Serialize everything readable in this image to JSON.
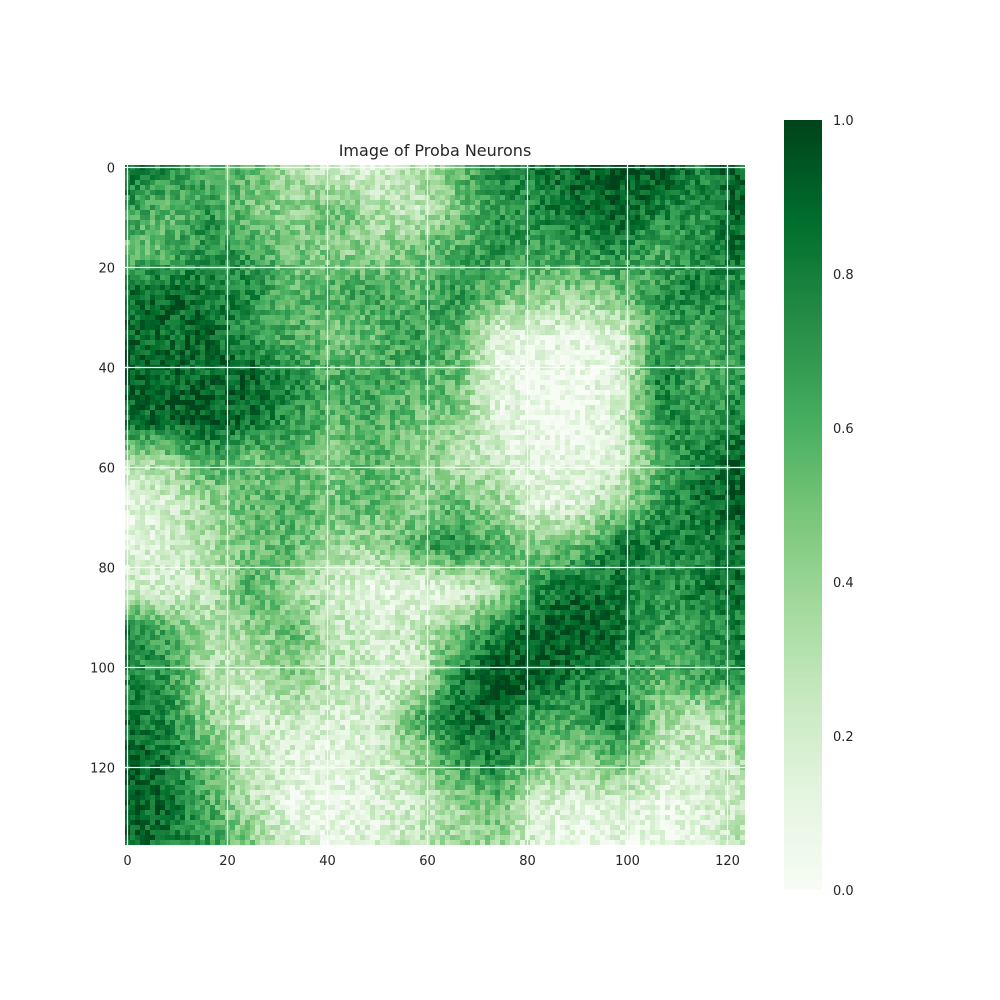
{
  "chart_data": {
    "type": "heatmap",
    "title": "Image of Proba Neurons",
    "xlabel": "",
    "ylabel": "",
    "colormap": "Greens",
    "colormap_stops": [
      "#f7fcf5",
      "#e5f5e0",
      "#c7e9c0",
      "#a1d99b",
      "#74c476",
      "#41ab5d",
      "#238b45",
      "#006d2c",
      "#00441b"
    ],
    "grid": true,
    "grid_color": "#ffffff",
    "n_cols": 124,
    "n_rows": 136,
    "xlim": [
      -0.5,
      123.5
    ],
    "ylim": [
      135.5,
      -0.5
    ],
    "xticks": [
      0,
      20,
      40,
      60,
      80,
      100,
      120
    ],
    "yticks": [
      0,
      20,
      40,
      60,
      80,
      100,
      120
    ],
    "xtick_labels": [
      "0",
      "20",
      "40",
      "60",
      "80",
      "100",
      "120"
    ],
    "ytick_labels": [
      "0",
      "20",
      "40",
      "60",
      "80",
      "100",
      "120"
    ],
    "colorbar": {
      "range": [
        0.0,
        1.0
      ],
      "ticks": [
        0.0,
        0.2,
        0.4,
        0.6,
        0.8,
        1.0
      ],
      "tick_labels": [
        "0.0",
        "0.2",
        "0.4",
        "0.6",
        "0.8",
        "1.0"
      ]
    },
    "value_grid": {
      "description_rows": 17,
      "description_cols": 16,
      "values": [
        [
          0.85,
          0.75,
          0.6,
          0.55,
          0.35,
          0.2,
          0.15,
          0.3,
          0.55,
          0.75,
          0.8,
          0.9,
          0.95,
          0.95,
          0.8,
          0.9
        ],
        [
          0.7,
          0.55,
          0.7,
          0.5,
          0.4,
          0.55,
          0.35,
          0.25,
          0.45,
          0.7,
          0.75,
          0.85,
          0.9,
          0.8,
          0.7,
          0.95
        ],
        [
          0.5,
          0.6,
          0.75,
          0.65,
          0.5,
          0.45,
          0.4,
          0.5,
          0.6,
          0.7,
          0.65,
          0.7,
          0.75,
          0.6,
          0.75,
          0.85
        ],
        [
          0.85,
          0.9,
          0.8,
          0.75,
          0.55,
          0.6,
          0.65,
          0.55,
          0.7,
          0.55,
          0.45,
          0.4,
          0.5,
          0.7,
          0.8,
          0.7
        ],
        [
          0.9,
          0.85,
          0.9,
          0.7,
          0.6,
          0.5,
          0.55,
          0.7,
          0.6,
          0.15,
          0.1,
          0.1,
          0.15,
          0.7,
          0.6,
          0.75
        ],
        [
          0.95,
          0.9,
          0.85,
          0.9,
          0.75,
          0.6,
          0.65,
          0.6,
          0.55,
          0.1,
          0.05,
          0.05,
          0.15,
          0.8,
          0.6,
          0.7
        ],
        [
          0.85,
          0.9,
          0.95,
          0.85,
          0.7,
          0.55,
          0.6,
          0.5,
          0.45,
          0.15,
          0.05,
          0.05,
          0.2,
          0.75,
          0.7,
          0.8
        ],
        [
          0.3,
          0.4,
          0.6,
          0.5,
          0.55,
          0.45,
          0.6,
          0.45,
          0.3,
          0.25,
          0.1,
          0.1,
          0.15,
          0.6,
          0.8,
          0.9
        ],
        [
          0.1,
          0.2,
          0.4,
          0.55,
          0.6,
          0.5,
          0.55,
          0.4,
          0.55,
          0.4,
          0.15,
          0.15,
          0.4,
          0.7,
          0.85,
          0.95
        ],
        [
          0.15,
          0.2,
          0.35,
          0.5,
          0.55,
          0.4,
          0.35,
          0.6,
          0.75,
          0.6,
          0.45,
          0.55,
          0.85,
          0.8,
          0.75,
          0.85
        ],
        [
          0.25,
          0.15,
          0.25,
          0.6,
          0.4,
          0.2,
          0.1,
          0.1,
          0.15,
          0.3,
          0.75,
          0.9,
          0.8,
          0.7,
          0.8,
          0.85
        ],
        [
          0.8,
          0.6,
          0.35,
          0.4,
          0.55,
          0.3,
          0.2,
          0.25,
          0.45,
          0.8,
          0.9,
          0.95,
          0.85,
          0.65,
          0.7,
          0.8
        ],
        [
          0.75,
          0.7,
          0.3,
          0.25,
          0.45,
          0.3,
          0.2,
          0.15,
          0.75,
          0.95,
          0.95,
          0.8,
          0.7,
          0.55,
          0.7,
          0.75
        ],
        [
          0.85,
          0.75,
          0.4,
          0.2,
          0.25,
          0.2,
          0.15,
          0.55,
          0.85,
          0.85,
          0.7,
          0.65,
          0.85,
          0.4,
          0.3,
          0.5
        ],
        [
          0.95,
          0.8,
          0.55,
          0.25,
          0.15,
          0.1,
          0.2,
          0.4,
          0.7,
          0.8,
          0.5,
          0.4,
          0.6,
          0.25,
          0.2,
          0.35
        ],
        [
          0.95,
          0.85,
          0.6,
          0.3,
          0.1,
          0.05,
          0.15,
          0.2,
          0.4,
          0.55,
          0.2,
          0.15,
          0.2,
          0.1,
          0.15,
          0.25
        ],
        [
          0.9,
          0.8,
          0.7,
          0.45,
          0.2,
          0.1,
          0.15,
          0.25,
          0.35,
          0.4,
          0.15,
          0.05,
          0.1,
          0.05,
          0.1,
          0.3
        ]
      ]
    }
  }
}
